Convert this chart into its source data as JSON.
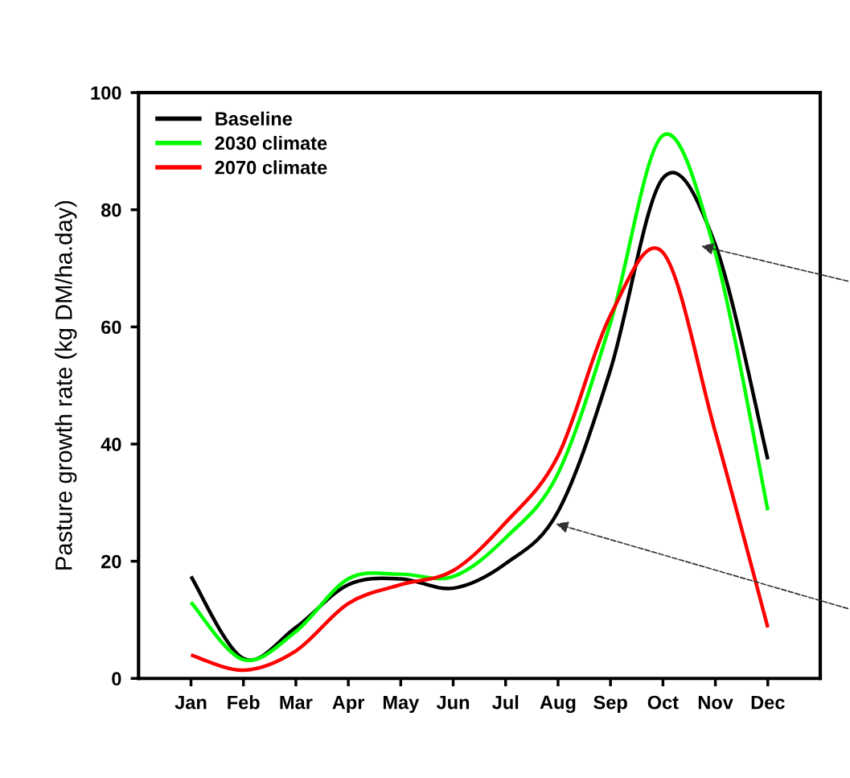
{
  "chart_data": {
    "type": "line",
    "ylabel": "Pasture growth rate (kg DM/ha.day)",
    "categories": [
      "Jan",
      "Feb",
      "Mar",
      "Apr",
      "May",
      "Jun",
      "Jul",
      "Aug",
      "Sep",
      "Oct",
      "Nov",
      "Dec"
    ],
    "ylim": [
      0,
      100
    ],
    "yticks": [
      0,
      20,
      40,
      60,
      80,
      100
    ],
    "grid": false,
    "legend": "top left",
    "marker": "none",
    "line_style": "solid",
    "series": [
      {
        "name": "Baseline",
        "color": "#000000",
        "values": [
          17.4,
          3.4,
          8.7,
          16,
          17,
          15.4,
          19.6,
          28.5,
          52.7,
          85.4,
          74,
          37.4
        ]
      },
      {
        "name": "2030 climate",
        "color": "#00ff00",
        "values": [
          13,
          3.2,
          8,
          17,
          17.8,
          17.4,
          24,
          35,
          60.7,
          92.7,
          72.6,
          28.7
        ]
      },
      {
        "name": "2070 climate",
        "color": "#ff0000",
        "values": [
          4,
          1.4,
          4.7,
          12.8,
          16,
          18.4,
          26.6,
          38,
          62,
          72.7,
          42,
          8.7
        ]
      }
    ]
  }
}
